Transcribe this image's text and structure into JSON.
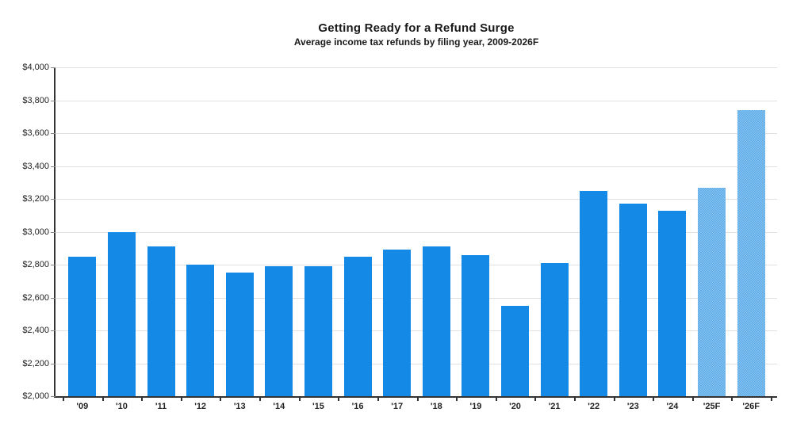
{
  "chart_data": {
    "type": "bar",
    "title": "Getting Ready for a Refund Surge",
    "subtitle": "Average income tax refunds by filing year, 2009-2026F",
    "categories": [
      "'09",
      "'10",
      "'11",
      "'12",
      "'13",
      "'14",
      "'15",
      "'16",
      "'17",
      "'18",
      "'19",
      "'20",
      "'21",
      "'22",
      "'23",
      "'24",
      "'25F",
      "'26F"
    ],
    "values": [
      2850,
      3000,
      2910,
      2800,
      2750,
      2790,
      2790,
      2850,
      2890,
      2910,
      2860,
      2550,
      2810,
      3250,
      3170,
      3130,
      3270,
      3740
    ],
    "forecast": [
      false,
      false,
      false,
      false,
      false,
      false,
      false,
      false,
      false,
      false,
      false,
      false,
      false,
      false,
      false,
      false,
      true,
      true
    ],
    "xlabel": "",
    "ylabel": "",
    "ylim": [
      2000,
      4000
    ],
    "ytick_step": 200,
    "ytick_labels": [
      "$2,000",
      "$2,200",
      "$2,400",
      "$2,600",
      "$2,800",
      "$3,000",
      "$3,200",
      "$3,400",
      "$3,600",
      "$3,800",
      "$4,000"
    ],
    "grid": "horizontal",
    "legend": "none",
    "colors": {
      "bar": "#1489e6",
      "forecast_light": "#8cc4f0",
      "forecast_dark": "#58aae8",
      "grid": "#e0e0e0",
      "axis": "#333333",
      "text": "#1a1a1a"
    }
  }
}
